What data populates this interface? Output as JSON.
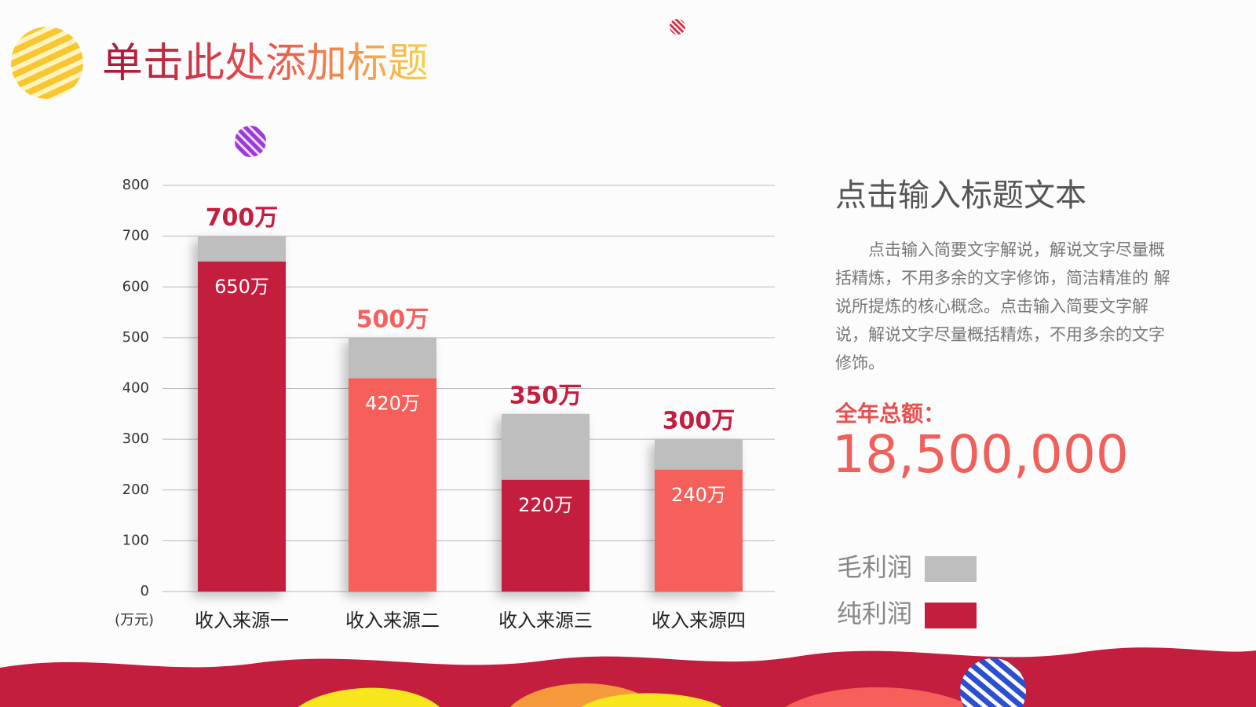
{
  "header": {
    "title": "单击此处添加标题"
  },
  "chart_data": {
    "type": "bar",
    "mode": "overlap",
    "y_unit_label": "(万元)",
    "categories": [
      "收入来源一",
      "收入来源二",
      "收入来源三",
      "收入来源四"
    ],
    "series": [
      {
        "name": "毛利润",
        "color": "#bfbebf",
        "values": [
          700,
          500,
          350,
          300
        ],
        "value_labels": [
          "700万",
          "500万",
          "350万",
          "300万"
        ],
        "value_label_colors": [
          "#c41e3f",
          "#f5605a",
          "#c41e3f",
          "#c41e3f"
        ]
      },
      {
        "name": "纯利润",
        "color": "#c41e3f",
        "colors": [
          "#c41e3f",
          "#f5605a",
          "#c41e3f",
          "#f5605a"
        ],
        "values": [
          650,
          420,
          220,
          240
        ],
        "value_labels": [
          "650万",
          "420万",
          "220万",
          "240万"
        ]
      }
    ],
    "ylim": [
      0,
      800
    ],
    "yticks": [
      0,
      100,
      200,
      300,
      400,
      500,
      600,
      700,
      800
    ],
    "grid": true
  },
  "side": {
    "heading": "点击输入标题文本",
    "body": "点击输入简要文字解说，解说文字尽量概括精炼，不用多余的文字修饰，简洁精准的 解说所提炼的核心概念。点击输入简要文字解说，解说文字尽量概括精炼，不用多余的文字修饰。",
    "total_label": "全年总额：",
    "total": "18,500,000"
  }
}
